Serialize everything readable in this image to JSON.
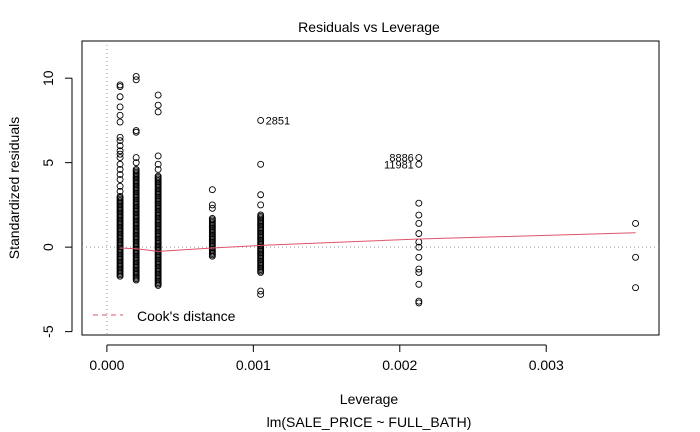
{
  "chart_data": {
    "type": "scatter",
    "title": "Residuals vs Leverage",
    "xlabel": "Leverage",
    "ylabel": "Standardized residuals",
    "subtitle": "lm(SALE_PRICE ~ FULL_BATH)",
    "xlim": [
      -0.00017,
      0.00377
    ],
    "ylim": [
      -5.2,
      12.2
    ],
    "xticks": [
      {
        "value": 0.0,
        "label": "0.000"
      },
      {
        "value": 0.001,
        "label": "0.001"
      },
      {
        "value": 0.002,
        "label": "0.002"
      },
      {
        "value": 0.003,
        "label": "0.003"
      }
    ],
    "yticks": [
      {
        "value": -5,
        "label": "-5"
      },
      {
        "value": 0,
        "label": "0"
      },
      {
        "value": 5,
        "label": "5"
      },
      {
        "value": 10,
        "label": "10"
      }
    ],
    "legend": {
      "label": "Cook's distance",
      "position": "bottom-left",
      "color": "#DF536B"
    },
    "reference_lines": {
      "x": 0,
      "y": 0,
      "color": "#9a9a9a",
      "style": "dotted"
    },
    "smooth_color": "#DF536B",
    "smooth": [
      {
        "x": 9e-05,
        "y": -0.05
      },
      {
        "x": 0.0002,
        "y": -0.1
      },
      {
        "x": 0.00035,
        "y": -0.25
      },
      {
        "x": 0.00072,
        "y": -0.05
      },
      {
        "x": 0.00105,
        "y": 0.1
      },
      {
        "x": 0.00213,
        "y": 0.48
      },
      {
        "x": 0.00361,
        "y": 0.85
      }
    ],
    "columns": [
      {
        "x": 9e-05,
        "dense": [
          -1.8,
          3.0
        ],
        "extra": [
          3.3,
          3.6,
          4.0,
          4.3,
          4.6,
          4.9,
          5.3,
          5.5,
          5.7,
          6.0,
          6.3,
          6.5,
          7.4,
          7.8,
          8.3,
          8.9,
          9.5,
          9.6
        ]
      },
      {
        "x": 0.0002,
        "dense": [
          -2.0,
          4.6
        ],
        "extra": [
          5.0,
          5.3,
          6.8,
          6.9,
          9.9,
          10.1
        ]
      },
      {
        "x": 0.00035,
        "dense": [
          -2.3,
          4.2
        ],
        "extra": [
          4.6,
          4.9,
          5.4,
          8.0,
          8.4,
          9.0
        ]
      },
      {
        "x": 0.00072,
        "dense": [
          -0.6,
          1.7
        ],
        "extra": [
          2.3,
          2.5,
          3.4
        ]
      },
      {
        "x": 0.00105,
        "dense": [
          -1.5,
          1.9
        ],
        "extra": [
          -2.8,
          -2.6,
          2.5,
          3.1,
          4.9,
          7.5
        ]
      },
      {
        "x": 0.00213,
        "dense": null,
        "extra": [
          -3.3,
          -3.2,
          -2.2,
          -1.5,
          -1.3,
          -0.6,
          0.0,
          0.3,
          0.8,
          1.4,
          1.9,
          2.6,
          4.9,
          5.3
        ]
      },
      {
        "x": 0.00361,
        "dense": null,
        "extra": [
          -2.4,
          -0.6,
          1.4
        ]
      }
    ],
    "point_labels": [
      {
        "text": "2851",
        "x": 0.00105,
        "y": 7.5,
        "side": "right"
      },
      {
        "text": "8886",
        "x": 0.00213,
        "y": 5.3,
        "side": "left"
      },
      {
        "text": "11981",
        "x": 0.00213,
        "y": 4.9,
        "side": "left"
      }
    ]
  }
}
